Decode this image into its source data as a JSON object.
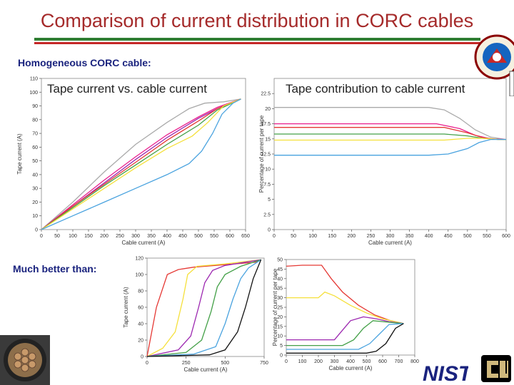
{
  "slide": {
    "title": "Comparison of current distribution in CORC cables",
    "section_homogeneous": "Homogeneous CORC cable:",
    "section_better": "Much better than:",
    "logos": [
      "nist-logo",
      "cu-logo",
      "lab-seal"
    ]
  },
  "chart_data": [
    {
      "type": "line",
      "title": "Tape current vs. cable current",
      "xlabel": "Cable current (A)",
      "ylabel": "Tape current (A)",
      "xlim": [
        0,
        650
      ],
      "ylim": [
        0,
        110
      ],
      "xticks": [
        0,
        50,
        100,
        150,
        200,
        250,
        300,
        350,
        400,
        450,
        500,
        550,
        600,
        650
      ],
      "yticks": [
        0,
        10,
        20,
        30,
        40,
        50,
        60,
        70,
        80,
        90,
        100,
        110
      ],
      "series": [
        {
          "color": "#aaaaaa",
          "x": [
            0,
            100,
            200,
            300,
            400,
            470,
            520,
            580,
            635
          ],
          "y": [
            0,
            20,
            42,
            62,
            78,
            88,
            92,
            93,
            95
          ]
        },
        {
          "color": "#e91e8c",
          "x": [
            0,
            100,
            200,
            300,
            400,
            500,
            560,
            635
          ],
          "y": [
            0,
            18,
            36,
            53,
            69,
            82,
            89,
            95
          ]
        },
        {
          "color": "#9c27b0",
          "x": [
            0,
            100,
            200,
            300,
            400,
            500,
            560,
            635
          ],
          "y": [
            0,
            17,
            34,
            51,
            67,
            81,
            88,
            95
          ]
        },
        {
          "color": "#e53935",
          "x": [
            0,
            100,
            200,
            300,
            400,
            500,
            560,
            635
          ],
          "y": [
            0,
            17,
            33,
            49,
            65,
            79,
            88,
            95
          ]
        },
        {
          "color": "#43a047",
          "x": [
            0,
            100,
            200,
            300,
            400,
            500,
            560,
            635
          ],
          "y": [
            0,
            16,
            32,
            47,
            62,
            76,
            87,
            95
          ]
        },
        {
          "color": "#f5e03b",
          "x": [
            0,
            100,
            200,
            300,
            400,
            480,
            530,
            580,
            635
          ],
          "y": [
            0,
            15,
            30,
            45,
            59,
            68,
            78,
            90,
            95
          ]
        },
        {
          "color": "#4aa3df",
          "x": [
            0,
            100,
            200,
            300,
            400,
            470,
            510,
            545,
            575,
            610,
            635
          ],
          "y": [
            0,
            10,
            20,
            30,
            40,
            48,
            57,
            70,
            84,
            92,
            95
          ]
        }
      ]
    },
    {
      "type": "line",
      "title": "Tape contribution to cable current",
      "xlabel": "Cable current (A)",
      "ylabel": "Percentage of current per tape",
      "xlim": [
        0,
        600
      ],
      "ylim": [
        0,
        25
      ],
      "xticks": [
        0,
        50,
        100,
        150,
        200,
        250,
        300,
        350,
        400,
        450,
        500,
        550,
        600
      ],
      "yticks": [
        0,
        2.5,
        5,
        7.5,
        10,
        12.5,
        15,
        17.5,
        20,
        22.5
      ],
      "series": [
        {
          "color": "#aaaaaa",
          "x": [
            0,
            400,
            440,
            480,
            520,
            560,
            600
          ],
          "y": [
            20.2,
            20.2,
            19.8,
            18.4,
            16.5,
            15.3,
            14.9
          ]
        },
        {
          "color": "#e91e8c",
          "x": [
            0,
            420,
            480,
            520,
            560,
            600
          ],
          "y": [
            17.5,
            17.5,
            16.7,
            15.6,
            15.0,
            14.9
          ]
        },
        {
          "color": "#e53935",
          "x": [
            0,
            440,
            500,
            540,
            580,
            600
          ],
          "y": [
            16.9,
            16.9,
            16.0,
            15.2,
            14.9,
            14.9
          ]
        },
        {
          "color": "#43a047",
          "x": [
            0,
            440,
            500,
            540,
            580,
            600
          ],
          "y": [
            15.8,
            15.8,
            15.5,
            15.1,
            14.9,
            14.9
          ]
        },
        {
          "color": "#f5e03b",
          "x": [
            0,
            440,
            500,
            540,
            580,
            600
          ],
          "y": [
            14.8,
            14.8,
            15.1,
            15.1,
            14.9,
            14.9
          ]
        },
        {
          "color": "#4aa3df",
          "x": [
            0,
            400,
            450,
            500,
            530,
            560,
            600
          ],
          "y": [
            12.3,
            12.3,
            12.5,
            13.4,
            14.4,
            14.9,
            14.9
          ]
        }
      ]
    },
    {
      "type": "line",
      "title": "",
      "xlabel": "Cable current (A)",
      "ylabel": "Tape current (A)",
      "xlim": [
        0,
        750
      ],
      "ylim": [
        0,
        120
      ],
      "xticks": [
        0,
        250,
        500,
        750
      ],
      "yticks": [
        0,
        20,
        40,
        60,
        80,
        100,
        120
      ],
      "series": [
        {
          "color": "#e53935",
          "x": [
            0,
            60,
            130,
            200,
            300,
            500,
            700,
            730
          ],
          "y": [
            0,
            60,
            100,
            106,
            109,
            112,
            115,
            118
          ]
        },
        {
          "color": "#f5e03b",
          "x": [
            0,
            100,
            180,
            230,
            260,
            320,
            500,
            730
          ],
          "y": [
            0,
            10,
            30,
            70,
            100,
            110,
            113,
            118
          ]
        },
        {
          "color": "#9c27b0",
          "x": [
            0,
            200,
            280,
            330,
            370,
            420,
            500,
            730
          ],
          "y": [
            0,
            8,
            25,
            60,
            90,
            105,
            111,
            118
          ]
        },
        {
          "color": "#43a047",
          "x": [
            0,
            250,
            350,
            410,
            450,
            500,
            600,
            730
          ],
          "y": [
            0,
            5,
            20,
            55,
            85,
            100,
            110,
            118
          ]
        },
        {
          "color": "#4aa3df",
          "x": [
            0,
            300,
            440,
            500,
            550,
            600,
            650,
            730
          ],
          "y": [
            0,
            3,
            12,
            40,
            70,
            95,
            108,
            118
          ]
        },
        {
          "color": "#111111",
          "x": [
            0,
            400,
            500,
            580,
            630,
            680,
            730
          ],
          "y": [
            0,
            2,
            8,
            30,
            60,
            95,
            118
          ]
        }
      ]
    },
    {
      "type": "line",
      "title": "",
      "xlabel": "Cable current (A)",
      "ylabel": "Percentage of current per tape",
      "xlim": [
        0,
        800
      ],
      "ylim": [
        0,
        50
      ],
      "xticks": [
        0,
        100,
        200,
        300,
        400,
        500,
        600,
        700,
        800
      ],
      "yticks": [
        0,
        5,
        10,
        15,
        20,
        25,
        30,
        35,
        40,
        45,
        50
      ],
      "series": [
        {
          "color": "#e53935",
          "x": [
            0,
            100,
            220,
            280,
            350,
            450,
            550,
            650,
            730
          ],
          "y": [
            46.5,
            47,
            47,
            40,
            33,
            26,
            21,
            18,
            16.5
          ]
        },
        {
          "color": "#f5e03b",
          "x": [
            0,
            200,
            240,
            300,
            400,
            500,
            600,
            730
          ],
          "y": [
            30,
            30,
            33,
            31,
            26,
            22,
            19,
            16.5
          ]
        },
        {
          "color": "#9c27b0",
          "x": [
            0,
            300,
            340,
            400,
            480,
            560,
            640,
            730
          ],
          "y": [
            8,
            8,
            12,
            18,
            20,
            19,
            17.5,
            16.5
          ]
        },
        {
          "color": "#43a047",
          "x": [
            0,
            350,
            420,
            480,
            540,
            600,
            730
          ],
          "y": [
            5,
            5,
            8,
            14,
            18,
            17.5,
            16.5
          ]
        },
        {
          "color": "#4aa3df",
          "x": [
            0,
            450,
            520,
            580,
            640,
            730
          ],
          "y": [
            3,
            3,
            6,
            11,
            16,
            16.5
          ]
        },
        {
          "color": "#111111",
          "x": [
            0,
            500,
            560,
            620,
            680,
            730
          ],
          "y": [
            1,
            1,
            2,
            6,
            14,
            16.5
          ]
        }
      ]
    }
  ]
}
